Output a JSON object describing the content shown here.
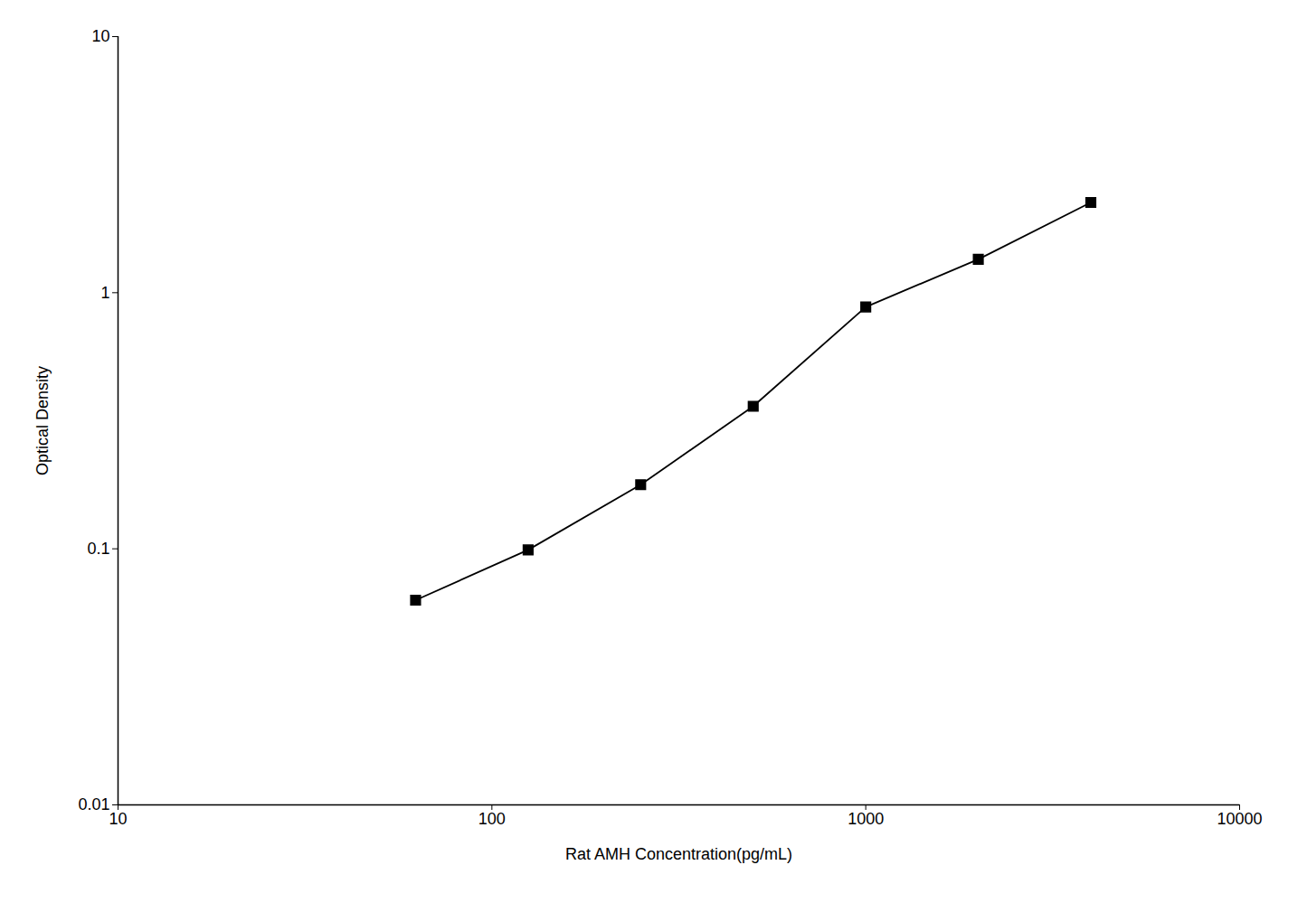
{
  "chart_data": {
    "type": "line",
    "x": [
      62.5,
      125,
      250,
      500,
      1000,
      2000,
      4000
    ],
    "values": [
      0.063,
      0.099,
      0.178,
      0.36,
      0.88,
      1.35,
      2.25
    ],
    "color": "#000000",
    "marker": "square",
    "line_style": "solid",
    "xlabel": "Rat AMH Concentration(pg/mL)",
    "ylabel": "Optical Density",
    "log": true,
    "xlim": [
      10,
      10000
    ],
    "ylim": [
      0.01,
      10
    ],
    "xticks": [
      10,
      100,
      1000,
      10000
    ],
    "yticks": [
      0.01,
      0.1,
      1,
      10
    ],
    "grid": false
  }
}
